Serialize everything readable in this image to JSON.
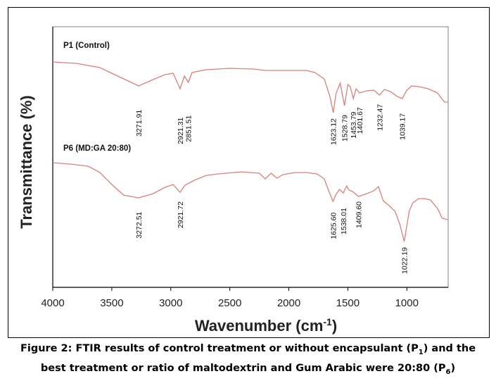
{
  "chart_data": {
    "type": "line",
    "xlabel": "Wavenumber (cm",
    "xlabel_sup": "-1",
    "xlabel_end": ")",
    "ylabel": "Transmittance (%)",
    "xlim": [
      4000,
      650
    ],
    "x_reversed": true,
    "x_ticks": [
      "4000",
      "3500",
      "3000",
      "2500",
      "2000",
      "1500",
      "1000"
    ],
    "x_tick_values": [
      4000,
      3500,
      3000,
      2500,
      2000,
      1500,
      1000
    ],
    "line_color": "#d98078",
    "grid": false,
    "legend": "none",
    "series": [
      {
        "name": "P1 (Control)",
        "peaks": [
          {
            "x": 3271.91,
            "label": "3271.91",
            "y": 0.17
          },
          {
            "x": 2921.31,
            "label": "2921.31",
            "y": 0.02
          },
          {
            "x": 2851.51,
            "label": "2851.51",
            "y": 0.06
          },
          {
            "x": 1623.12,
            "label": "1623.12",
            "y": 0.0
          },
          {
            "x": 1528.79,
            "label": "1528.79",
            "y": 0.07
          },
          {
            "x": 1453.79,
            "label": "1453.79",
            "y": 0.13
          },
          {
            "x": 1401.67,
            "label": "1401.67",
            "y": 0.22
          },
          {
            "x": 1232.47,
            "label": "1232.47",
            "y": 0.28
          },
          {
            "x": 1039.17,
            "label": "1039.17",
            "y": 0.1
          }
        ]
      },
      {
        "name": "P6 (MD:GA 20:80)",
        "peaks": [
          {
            "x": 3272.51,
            "label": "3272.51",
            "y": 0.45
          },
          {
            "x": 2921.72,
            "label": "2921.72",
            "y": 0.58
          },
          {
            "x": 1625.6,
            "label": "1625.60",
            "y": 0.44
          },
          {
            "x": 1538.01,
            "label": "1538.01",
            "y": 0.5
          },
          {
            "x": 1409.6,
            "label": "1409.60",
            "y": 0.58
          },
          {
            "x": 1022.19,
            "label": "1022.19",
            "y": 0.0
          }
        ]
      }
    ]
  },
  "caption": {
    "line1_a": "Figure 2: FTIR results of control treatment or without encapsulant (P",
    "line1_sub": "1",
    "line1_b": ") and the",
    "line2_a": "best treatment or ratio of maltodextrin and Gum Arabic were 20:80 (P",
    "line2_sub": "6",
    "line2_b": ")"
  }
}
